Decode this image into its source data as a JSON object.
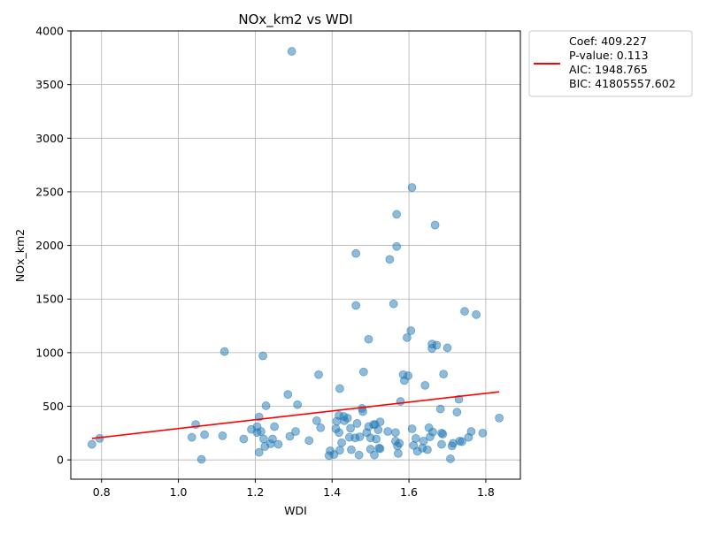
{
  "chart_data": {
    "type": "scatter",
    "title": "NOx_km2 vs WDI",
    "xlabel": "WDI",
    "ylabel": "NOx_km2",
    "xlim": [
      0.72,
      1.89
    ],
    "ylim": [
      -180,
      4000
    ],
    "xticks": [
      0.8,
      1.0,
      1.2,
      1.4,
      1.6,
      1.8
    ],
    "xtick_labels": [
      "0.8",
      "1.0",
      "1.2",
      "1.4",
      "1.6",
      "1.8"
    ],
    "yticks": [
      0,
      500,
      1000,
      1500,
      2000,
      2500,
      3000,
      3500,
      4000
    ],
    "ytick_labels": [
      "0",
      "500",
      "1000",
      "1500",
      "2000",
      "2500",
      "3000",
      "3500",
      "4000"
    ],
    "grid": true,
    "legend_position": "outside-top-right",
    "legend_lines": [
      "Coef: 409.227",
      "P-value: 0.113",
      "AIC: 1948.765",
      "BIC: 41805557.602"
    ],
    "colors": {
      "points": "#1f77b4",
      "fit_line": "#ff0000"
    },
    "fit_line": {
      "x": [
        0.775,
        1.835
      ],
      "y": [
        200,
        635
      ]
    },
    "points": [
      [
        0.775,
        145
      ],
      [
        0.795,
        200
      ],
      [
        1.035,
        210
      ],
      [
        1.045,
        330
      ],
      [
        1.06,
        5
      ],
      [
        1.068,
        235
      ],
      [
        1.115,
        225
      ],
      [
        1.12,
        1010
      ],
      [
        1.17,
        195
      ],
      [
        1.19,
        285
      ],
      [
        1.205,
        310
      ],
      [
        1.205,
        255
      ],
      [
        1.21,
        400
      ],
      [
        1.21,
        70
      ],
      [
        1.215,
        265
      ],
      [
        1.22,
        970
      ],
      [
        1.222,
        195
      ],
      [
        1.225,
        125
      ],
      [
        1.228,
        505
      ],
      [
        1.24,
        150
      ],
      [
        1.245,
        195
      ],
      [
        1.25,
        310
      ],
      [
        1.26,
        145
      ],
      [
        1.285,
        610
      ],
      [
        1.29,
        220
      ],
      [
        1.295,
        3810
      ],
      [
        1.305,
        265
      ],
      [
        1.31,
        515
      ],
      [
        1.34,
        180
      ],
      [
        1.36,
        365
      ],
      [
        1.365,
        795
      ],
      [
        1.37,
        300
      ],
      [
        1.392,
        40
      ],
      [
        1.395,
        85
      ],
      [
        1.405,
        50
      ],
      [
        1.41,
        290
      ],
      [
        1.412,
        360
      ],
      [
        1.418,
        415
      ],
      [
        1.418,
        255
      ],
      [
        1.42,
        665
      ],
      [
        1.42,
        90
      ],
      [
        1.425,
        160
      ],
      [
        1.43,
        405
      ],
      [
        1.432,
        365
      ],
      [
        1.44,
        390
      ],
      [
        1.445,
        210
      ],
      [
        1.448,
        295
      ],
      [
        1.45,
        95
      ],
      [
        1.46,
        205
      ],
      [
        1.462,
        1925
      ],
      [
        1.462,
        1440
      ],
      [
        1.465,
        340
      ],
      [
        1.47,
        45
      ],
      [
        1.472,
        215
      ],
      [
        1.478,
        480
      ],
      [
        1.48,
        450
      ],
      [
        1.482,
        820
      ],
      [
        1.49,
        255
      ],
      [
        1.495,
        1125
      ],
      [
        1.495,
        310
      ],
      [
        1.5,
        100
      ],
      [
        1.5,
        205
      ],
      [
        1.508,
        330
      ],
      [
        1.51,
        45
      ],
      [
        1.512,
        330
      ],
      [
        1.515,
        195
      ],
      [
        1.52,
        280
      ],
      [
        1.522,
        110
      ],
      [
        1.525,
        355
      ],
      [
        1.525,
        105
      ],
      [
        1.545,
        265
      ],
      [
        1.55,
        1870
      ],
      [
        1.56,
        1455
      ],
      [
        1.565,
        255
      ],
      [
        1.565,
        175
      ],
      [
        1.568,
        2290
      ],
      [
        1.568,
        1990
      ],
      [
        1.57,
        130
      ],
      [
        1.572,
        60
      ],
      [
        1.575,
        155
      ],
      [
        1.578,
        545
      ],
      [
        1.585,
        795
      ],
      [
        1.588,
        740
      ],
      [
        1.595,
        1140
      ],
      [
        1.598,
        785
      ],
      [
        1.605,
        1205
      ],
      [
        1.608,
        2540
      ],
      [
        1.608,
        290
      ],
      [
        1.612,
        135
      ],
      [
        1.618,
        200
      ],
      [
        1.622,
        80
      ],
      [
        1.635,
        110
      ],
      [
        1.638,
        175
      ],
      [
        1.642,
        695
      ],
      [
        1.648,
        95
      ],
      [
        1.652,
        300
      ],
      [
        1.655,
        215
      ],
      [
        1.66,
        1040
      ],
      [
        1.66,
        1080
      ],
      [
        1.662,
        260
      ],
      [
        1.668,
        2190
      ],
      [
        1.672,
        1070
      ],
      [
        1.682,
        475
      ],
      [
        1.685,
        250
      ],
      [
        1.685,
        145
      ],
      [
        1.688,
        240
      ],
      [
        1.69,
        800
      ],
      [
        1.7,
        1045
      ],
      [
        1.708,
        10
      ],
      [
        1.712,
        130
      ],
      [
        1.715,
        155
      ],
      [
        1.725,
        445
      ],
      [
        1.73,
        565
      ],
      [
        1.732,
        175
      ],
      [
        1.738,
        170
      ],
      [
        1.745,
        1385
      ],
      [
        1.755,
        210
      ],
      [
        1.762,
        265
      ],
      [
        1.775,
        1355
      ],
      [
        1.792,
        250
      ],
      [
        1.835,
        390
      ]
    ]
  }
}
